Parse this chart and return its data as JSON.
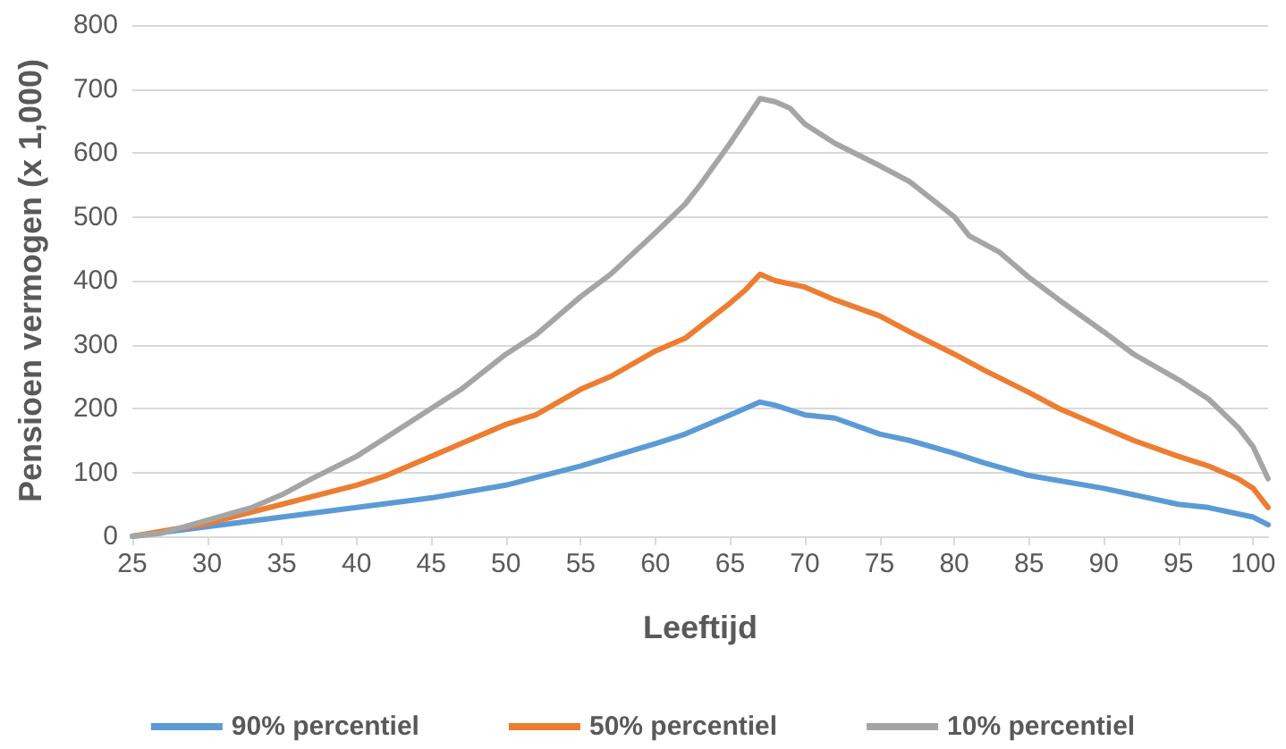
{
  "chart_data": {
    "type": "line",
    "xlabel": "Leeftijd",
    "ylabel": "Pensioen vermogen (x 1,000)",
    "xlim": [
      25,
      101
    ],
    "xticks": [
      25,
      30,
      35,
      40,
      45,
      50,
      55,
      60,
      65,
      70,
      75,
      80,
      85,
      90,
      95,
      100
    ],
    "ylim": [
      0,
      800
    ],
    "yticks": [
      0,
      100,
      200,
      300,
      400,
      500,
      600,
      700,
      800
    ],
    "grid": "y",
    "legend": "bottom",
    "marker": "none",
    "line_style": "solid",
    "series": [
      {
        "name": "90% percentiel",
        "color": "#5b9bd5",
        "x": [
          25,
          30,
          35,
          40,
          45,
          50,
          55,
          60,
          62,
          65,
          67,
          68,
          70,
          72,
          75,
          77,
          80,
          82,
          85,
          90,
          92,
          95,
          97,
          100,
          101
        ],
        "values": [
          0,
          15,
          30,
          45,
          60,
          80,
          110,
          145,
          160,
          190,
          210,
          205,
          190,
          185,
          160,
          150,
          130,
          115,
          95,
          75,
          65,
          50,
          45,
          30,
          18
        ]
      },
      {
        "name": "50% percentiel",
        "color": "#ed7d31",
        "x": [
          25,
          30,
          35,
          40,
          42,
          45,
          47,
          50,
          52,
          55,
          57,
          60,
          62,
          65,
          66,
          67,
          68,
          70,
          72,
          75,
          77,
          80,
          82,
          85,
          87,
          90,
          92,
          95,
          97,
          99,
          100,
          101
        ],
        "values": [
          0,
          20,
          50,
          80,
          95,
          125,
          145,
          175,
          190,
          230,
          250,
          290,
          310,
          365,
          385,
          410,
          400,
          390,
          370,
          345,
          320,
          285,
          260,
          225,
          200,
          170,
          150,
          125,
          110,
          90,
          75,
          45
        ]
      },
      {
        "name": "10% percentiel",
        "color": "#a5a5a5",
        "x": [
          25,
          27,
          30,
          33,
          35,
          37,
          40,
          42,
          45,
          47,
          50,
          52,
          55,
          57,
          60,
          62,
          63,
          65,
          66,
          67,
          68,
          69,
          70,
          72,
          75,
          77,
          80,
          81,
          83,
          85,
          87,
          90,
          92,
          95,
          97,
          99,
          100,
          101
        ],
        "values": [
          0,
          5,
          25,
          45,
          65,
          90,
          125,
          155,
          200,
          230,
          285,
          315,
          375,
          410,
          475,
          520,
          550,
          615,
          650,
          685,
          680,
          670,
          645,
          615,
          580,
          555,
          500,
          470,
          445,
          405,
          370,
          320,
          285,
          245,
          215,
          170,
          140,
          90
        ]
      }
    ]
  }
}
